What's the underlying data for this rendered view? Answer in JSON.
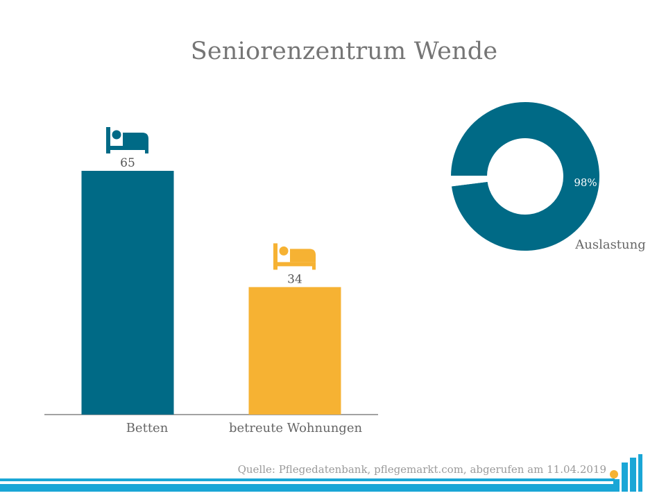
{
  "title": "Seniorenzentrum Wende",
  "source": "Quelle: Pflegedatenbank, pflegemarkt.com, abgerufen am 11.04.2019",
  "colors": {
    "primary": "#006a86",
    "accent": "#f6b233",
    "footer_band": "#1aa6d6",
    "text": "#757575"
  },
  "icons": {
    "bar_icon": "bed-icon",
    "logo": "pflegemarkt-logo"
  },
  "chart_data": [
    {
      "type": "bar",
      "categories": [
        "Betten",
        "betreute Wohnungen"
      ],
      "values": [
        65,
        34
      ],
      "data_labels": [
        "65",
        "34"
      ],
      "bar_colors": [
        "#006a86",
        "#f6b233"
      ],
      "ylim": [
        0,
        75
      ],
      "grid": false
    },
    {
      "type": "pie",
      "style": "donut",
      "value_label": "98%",
      "values": [
        98,
        2
      ],
      "colors": [
        "#006a86",
        "#ffffff"
      ],
      "caption": "Auslastung"
    }
  ]
}
